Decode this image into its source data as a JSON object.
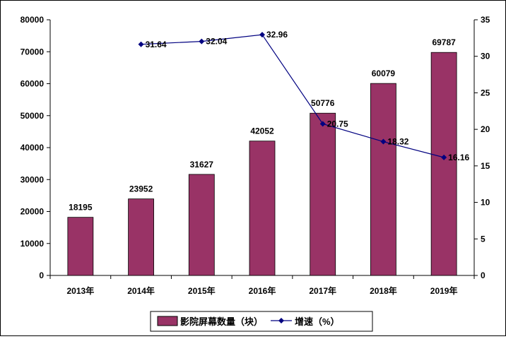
{
  "chart_data": {
    "type": "bar",
    "categories": [
      "2013年",
      "2014年",
      "2015年",
      "2016年",
      "2017年",
      "2018年",
      "2019年"
    ],
    "series": [
      {
        "name": "影院屏幕数量（块）",
        "type": "bar",
        "axis": "left",
        "color": "#993366",
        "values": [
          18195,
          23952,
          31627,
          42052,
          50776,
          60079,
          69787
        ],
        "labels": [
          "18195",
          "23952",
          "31627",
          "42052",
          "50776",
          "60079",
          "69787"
        ]
      },
      {
        "name": "增速（%）",
        "type": "line",
        "axis": "right",
        "color": "#000080",
        "values": [
          null,
          31.64,
          32.04,
          32.96,
          20.75,
          18.32,
          16.16
        ],
        "labels": [
          "",
          "31.64",
          "32.04",
          "32.96",
          "20.75",
          "18.32",
          "16.16"
        ]
      }
    ],
    "y_left": {
      "range": [
        0,
        80000
      ],
      "ticks": [
        "0",
        "10000",
        "20000",
        "30000",
        "40000",
        "50000",
        "60000",
        "70000",
        "80000"
      ]
    },
    "y_right": {
      "range": [
        0,
        35
      ],
      "ticks": [
        "0",
        "5",
        "10",
        "15",
        "20",
        "25",
        "30",
        "35"
      ]
    },
    "grid": false,
    "legend": "bottom"
  }
}
